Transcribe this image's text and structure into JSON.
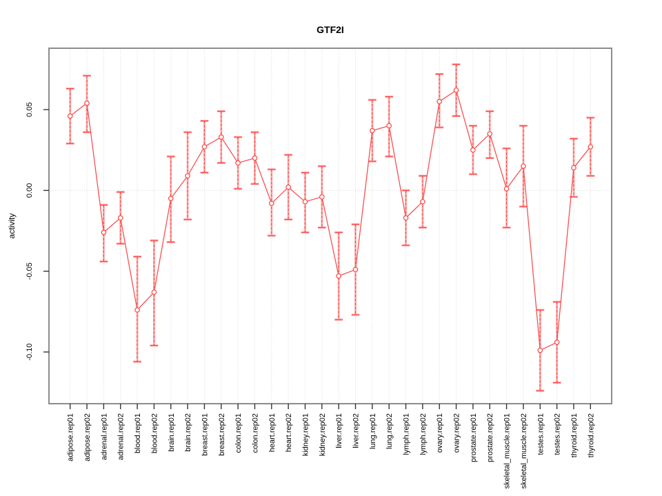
{
  "chart_data": {
    "type": "line",
    "title": "GTF2I",
    "xlabel": "",
    "ylabel": "activity",
    "legend": "none",
    "grid": "vertical dotted gridline per category; dotted horizontal line at y=0",
    "marker": "open-circle",
    "error_bars": true,
    "ylim": [
      -0.132,
      0.088
    ],
    "yticks": [
      0.05,
      0.0,
      -0.05,
      -0.1
    ],
    "ytick_labels": [
      "0.05",
      "0.00",
      "-0.05",
      "-0.10"
    ],
    "categories": [
      "adipose.rep01",
      "adipose.rep02",
      "adrenal.rep01",
      "adrenal.rep02",
      "blood.rep01",
      "blood.rep02",
      "brain.rep01",
      "brain.rep02",
      "breast.rep01",
      "breast.rep02",
      "colon.rep01",
      "colon.rep02",
      "heart.rep01",
      "heart.rep02",
      "kidney.rep01",
      "kidney.rep02",
      "liver.rep01",
      "liver.rep02",
      "lung.rep01",
      "lung.rep02",
      "lymph.rep01",
      "lymph.rep02",
      "ovary.rep01",
      "ovary.rep02",
      "prostate.rep01",
      "prostate.rep02",
      "skeletal_muscle.rep01",
      "skeletal_muscle.rep02",
      "testes.rep01",
      "testes.rep02",
      "thyroid.rep01",
      "thyroid.rep02"
    ],
    "series": [
      {
        "name": "activity",
        "values": [
          0.046,
          0.054,
          -0.026,
          -0.017,
          -0.074,
          -0.063,
          -0.005,
          0.009,
          0.027,
          0.033,
          0.017,
          0.02,
          -0.008,
          0.002,
          -0.007,
          -0.004,
          -0.053,
          -0.049,
          0.037,
          0.04,
          -0.017,
          -0.007,
          0.055,
          0.062,
          0.025,
          0.035,
          0.001,
          0.015,
          -0.099,
          -0.094,
          0.014,
          0.027
        ],
        "lower": [
          0.029,
          0.036,
          -0.044,
          -0.033,
          -0.106,
          -0.096,
          -0.032,
          -0.018,
          0.011,
          0.017,
          0.001,
          0.004,
          -0.028,
          -0.018,
          -0.026,
          -0.023,
          -0.08,
          -0.077,
          0.018,
          0.021,
          -0.034,
          -0.023,
          0.039,
          0.046,
          0.01,
          0.02,
          -0.023,
          -0.01,
          -0.124,
          -0.119,
          -0.004,
          0.009
        ],
        "upper": [
          0.063,
          0.071,
          -0.009,
          -0.001,
          -0.041,
          -0.031,
          0.021,
          0.036,
          0.043,
          0.049,
          0.033,
          0.036,
          0.013,
          0.022,
          0.011,
          0.015,
          -0.026,
          -0.021,
          0.056,
          0.058,
          0.0,
          0.009,
          0.072,
          0.078,
          0.04,
          0.049,
          0.026,
          0.04,
          -0.074,
          -0.069,
          0.032,
          0.045
        ]
      }
    ],
    "colors": {
      "series": "#f94f4f",
      "error_light": "#ff9e9e",
      "grid": "#d8d8d8",
      "frame": "#8c8c8c",
      "tick": "#333333",
      "text": "#000000",
      "background": "#ffffff"
    }
  }
}
